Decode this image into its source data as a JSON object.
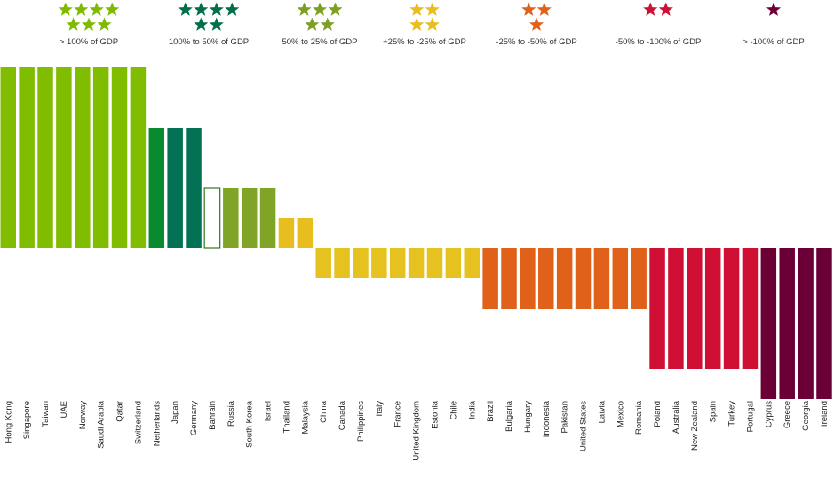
{
  "chart_data": {
    "type": "bar",
    "title": "",
    "xlabel": "",
    "ylabel": "",
    "ylim": [
      -5,
      6
    ],
    "legend_position": "top",
    "legend": [
      {
        "label": "> 100% of GDP",
        "stars": 7,
        "color": "#7fba00"
      },
      {
        "label": "100% to 50% of GDP",
        "stars": 6,
        "color": "#006f4a"
      },
      {
        "label": "50% to 25% of GDP",
        "stars": 5,
        "color": "#7e9e24"
      },
      {
        "label": "+25% to -25% of GDP",
        "stars": 4,
        "color": "#e8be1e"
      },
      {
        "label": "-25% to -50% of GDP",
        "stars": 3,
        "color": "#e0611a"
      },
      {
        "label": "-50% to -100% of GDP",
        "stars": 2,
        "color": "#cf0f33"
      },
      {
        "label": "> -100% of GDP",
        "stars": 1,
        "color": "#6b0037"
      }
    ],
    "categories": [
      "Hong Kong",
      "Singapore",
      "Taiwan",
      "UAE",
      "Norway",
      "Saudi Arabia",
      "Qatar",
      "Switzerland",
      "Netherlands",
      "Japan",
      "Germany",
      "Bahrain",
      "Russia",
      "South Korea",
      "Israel",
      "Thailand",
      "Malaysia",
      "China",
      "Canada",
      "Philippines",
      "Italy",
      "France",
      "United Kingdom",
      "Estonia",
      "Chile",
      "India",
      "Brazil",
      "Bulgaria",
      "Hungary",
      "Indonesia",
      "Pakistan",
      "United States",
      "Latvia",
      "Mexico",
      "Romania",
      "Poland",
      "Australia",
      "New Zealand",
      "Spain",
      "Turkey",
      "Portugal",
      "Cyprus",
      "Greece",
      "Georgia",
      "Ireland"
    ],
    "values": [
      6,
      6,
      6,
      6,
      6,
      6,
      6,
      6,
      4,
      4,
      4,
      2,
      2,
      2,
      2,
      1,
      1,
      -1,
      -1,
      -1,
      -1,
      -1,
      -1,
      -1,
      -1,
      -1,
      -2,
      -2,
      -2,
      -2,
      -2,
      -2,
      -2,
      -2,
      -2,
      -4,
      -4,
      -4,
      -4,
      -4,
      -4,
      -5,
      -5,
      -5,
      -5
    ],
    "bar_colors": [
      "#80bc00",
      "#80bc00",
      "#80bc00",
      "#80bc00",
      "#80bc00",
      "#80bc00",
      "#80bc00",
      "#80bc00",
      "#098a2e",
      "#037254",
      "#037254",
      "#ffffff",
      "#80a428",
      "#80a428",
      "#80a428",
      "#e8be1e",
      "#e8be1e",
      "#e5c21f",
      "#e5c21f",
      "#e5c21f",
      "#e5c21f",
      "#e5c21f",
      "#e5c21f",
      "#e5c21f",
      "#e5c21f",
      "#e5c21f",
      "#e0611a",
      "#e0611a",
      "#e0611a",
      "#e0611a",
      "#e0611a",
      "#e0611a",
      "#e0611a",
      "#e0611a",
      "#e0611a",
      "#cf0f33",
      "#cf0f33",
      "#cf0f33",
      "#cf0f33",
      "#cf0f33",
      "#cf0f33",
      "#6b0037",
      "#6b0037",
      "#6b0037",
      "#6b0037"
    ],
    "bar_outline_colors": {
      "11": "#2f7a1e"
    }
  }
}
